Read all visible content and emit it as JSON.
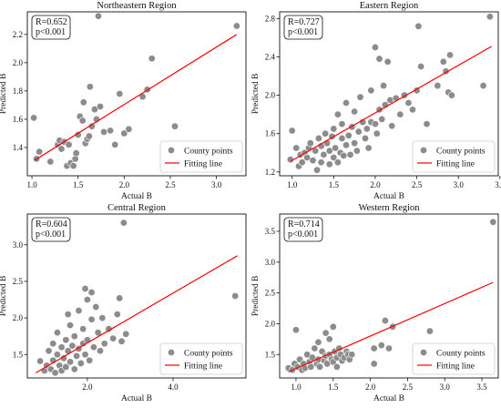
{
  "chart_data": [
    {
      "type": "scatter",
      "title": "Northeastern Region",
      "xlabel": "Actual B",
      "ylabel": "Predicted B",
      "xlim": [
        0.95,
        3.32
      ],
      "ylim": [
        1.2,
        2.36
      ],
      "xticks": [
        1.0,
        1.5,
        2.0,
        2.5,
        3.0
      ],
      "yticks": [
        1.4,
        1.6,
        1.8,
        2.0,
        2.2
      ],
      "stats": [
        "R=0.652",
        "p<0.001"
      ],
      "legend": {
        "position": "bottom-right",
        "points": "County points",
        "line": "Fitting line"
      },
      "colors": {
        "points": "#8c8c8c",
        "line": "#ff0000"
      },
      "fit_line": [
        [
          1.03,
          1.31
        ],
        [
          3.22,
          2.2
        ]
      ],
      "points": [
        [
          1.02,
          1.61
        ],
        [
          1.05,
          1.32
        ],
        [
          1.08,
          1.37
        ],
        [
          1.2,
          1.3
        ],
        [
          1.28,
          1.42
        ],
        [
          1.3,
          1.45
        ],
        [
          1.32,
          1.39
        ],
        [
          1.35,
          1.44
        ],
        [
          1.38,
          1.27
        ],
        [
          1.4,
          1.42
        ],
        [
          1.42,
          1.29
        ],
        [
          1.45,
          1.27
        ],
        [
          1.47,
          1.32
        ],
        [
          1.48,
          1.36
        ],
        [
          1.5,
          1.49
        ],
        [
          1.52,
          1.62
        ],
        [
          1.55,
          1.59
        ],
        [
          1.56,
          1.72
        ],
        [
          1.58,
          1.43
        ],
        [
          1.6,
          1.46
        ],
        [
          1.62,
          1.48
        ],
        [
          1.63,
          1.83
        ],
        [
          1.65,
          1.55
        ],
        [
          1.68,
          1.67
        ],
        [
          1.7,
          1.6
        ],
        [
          1.72,
          2.33
        ],
        [
          1.74,
          1.69
        ],
        [
          1.78,
          1.51
        ],
        [
          1.85,
          1.52
        ],
        [
          1.9,
          1.42
        ],
        [
          1.95,
          1.78
        ],
        [
          2.0,
          1.5
        ],
        [
          2.05,
          1.53
        ],
        [
          2.2,
          1.76
        ],
        [
          2.25,
          1.81
        ],
        [
          2.3,
          2.03
        ],
        [
          2.55,
          1.55
        ],
        [
          3.22,
          2.26
        ]
      ]
    },
    {
      "type": "scatter",
      "title": "Eastern Region",
      "xlabel": "Actual B",
      "ylabel": "Predicted B",
      "xlim": [
        0.85,
        3.48
      ],
      "ylim": [
        1.16,
        2.87
      ],
      "xticks": [
        1.0,
        1.5,
        2.0,
        2.5,
        3.0,
        3.5
      ],
      "yticks": [
        1.2,
        1.6,
        2.0,
        2.4,
        2.8
      ],
      "stats": [
        "R=0.727",
        "p<0.001"
      ],
      "legend": {
        "position": "bottom-right",
        "points": "County points",
        "line": "Fitting line"
      },
      "colors": {
        "points": "#8c8c8c",
        "line": "#ff0000"
      },
      "fit_line": [
        [
          0.98,
          1.31
        ],
        [
          3.4,
          2.51
        ]
      ],
      "points": [
        [
          0.98,
          1.33
        ],
        [
          1.0,
          1.63
        ],
        [
          1.05,
          1.45
        ],
        [
          1.08,
          1.26
        ],
        [
          1.1,
          1.38
        ],
        [
          1.12,
          1.3
        ],
        [
          1.15,
          1.4
        ],
        [
          1.18,
          1.35
        ],
        [
          1.2,
          1.45
        ],
        [
          1.22,
          1.5
        ],
        [
          1.25,
          1.32
        ],
        [
          1.28,
          1.42
        ],
        [
          1.3,
          1.22
        ],
        [
          1.32,
          1.55
        ],
        [
          1.35,
          1.3
        ],
        [
          1.35,
          1.47
        ],
        [
          1.38,
          1.38
        ],
        [
          1.4,
          1.6
        ],
        [
          1.42,
          1.5
        ],
        [
          1.45,
          1.28
        ],
        [
          1.45,
          1.42
        ],
        [
          1.48,
          1.57
        ],
        [
          1.5,
          1.35
        ],
        [
          1.5,
          1.65
        ],
        [
          1.52,
          1.45
        ],
        [
          1.55,
          1.3
        ],
        [
          1.55,
          1.8
        ],
        [
          1.58,
          1.4
        ],
        [
          1.6,
          1.55
        ],
        [
          1.6,
          1.7
        ],
        [
          1.62,
          1.37
        ],
        [
          1.65,
          1.48
        ],
        [
          1.65,
          1.92
        ],
        [
          1.68,
          1.58
        ],
        [
          1.7,
          1.38
        ],
        [
          1.72,
          1.67
        ],
        [
          1.75,
          1.5
        ],
        [
          1.75,
          1.83
        ],
        [
          1.78,
          1.42
        ],
        [
          1.8,
          1.62
        ],
        [
          1.82,
          1.98
        ],
        [
          1.85,
          1.72
        ],
        [
          1.88,
          1.55
        ],
        [
          1.9,
          1.65
        ],
        [
          1.92,
          1.45
        ],
        [
          1.95,
          1.72
        ],
        [
          1.95,
          2.05
        ],
        [
          2.0,
          2.5
        ],
        [
          2.0,
          1.7
        ],
        [
          2.02,
          1.6
        ],
        [
          2.05,
          2.38
        ],
        [
          2.05,
          1.85
        ],
        [
          2.08,
          1.75
        ],
        [
          2.1,
          2.1
        ],
        [
          2.12,
          1.9
        ],
        [
          2.15,
          2.35
        ],
        [
          2.18,
          1.95
        ],
        [
          2.2,
          1.68
        ],
        [
          2.25,
          1.97
        ],
        [
          2.3,
          1.8
        ],
        [
          2.35,
          2.0
        ],
        [
          2.4,
          1.92
        ],
        [
          2.45,
          1.85
        ],
        [
          2.5,
          2.05
        ],
        [
          2.52,
          2.72
        ],
        [
          2.55,
          2.3
        ],
        [
          2.62,
          1.7
        ],
        [
          2.75,
          2.1
        ],
        [
          2.82,
          2.35
        ],
        [
          2.85,
          2.25
        ],
        [
          2.88,
          2.03
        ],
        [
          2.9,
          2.42
        ],
        [
          2.92,
          2.0
        ],
        [
          3.3,
          2.1
        ],
        [
          3.38,
          2.82
        ]
      ]
    },
    {
      "type": "scatter",
      "title": "Central Region",
      "xlabel": "Actual B",
      "ylabel": "Predicted B",
      "xlim": [
        0.6,
        5.7
      ],
      "ylim": [
        1.18,
        3.42
      ],
      "xticks": [
        2.0,
        4.0
      ],
      "yticks": [
        1.5,
        2.0,
        2.5,
        3.0
      ],
      "stats": [
        "R=0.604",
        "p<0.001"
      ],
      "legend": {
        "position": "bottom-right",
        "points": "County points",
        "line": "Fitting line"
      },
      "colors": {
        "points": "#8c8c8c",
        "line": "#ff0000"
      },
      "fit_line": [
        [
          0.8,
          1.25
        ],
        [
          5.5,
          2.85
        ]
      ],
      "points": [
        [
          0.9,
          1.41
        ],
        [
          1.0,
          1.28
        ],
        [
          1.05,
          1.35
        ],
        [
          1.1,
          1.55
        ],
        [
          1.15,
          1.3
        ],
        [
          1.2,
          1.42
        ],
        [
          1.2,
          1.65
        ],
        [
          1.25,
          1.25
        ],
        [
          1.3,
          1.5
        ],
        [
          1.3,
          1.8
        ],
        [
          1.35,
          1.35
        ],
        [
          1.4,
          1.6
        ],
        [
          1.4,
          1.28
        ],
        [
          1.45,
          1.45
        ],
        [
          1.5,
          1.7
        ],
        [
          1.5,
          1.33
        ],
        [
          1.55,
          1.55
        ],
        [
          1.55,
          2.05
        ],
        [
          1.6,
          1.4
        ],
        [
          1.6,
          1.9
        ],
        [
          1.65,
          1.62
        ],
        [
          1.7,
          1.3
        ],
        [
          1.7,
          1.75
        ],
        [
          1.75,
          1.48
        ],
        [
          1.8,
          2.1
        ],
        [
          1.8,
          1.58
        ],
        [
          1.85,
          1.38
        ],
        [
          1.9,
          1.85
        ],
        [
          1.9,
          1.65
        ],
        [
          1.95,
          2.4
        ],
        [
          1.95,
          1.5
        ],
        [
          2.0,
          2.25
        ],
        [
          2.0,
          1.7
        ],
        [
          2.05,
          1.42
        ],
        [
          2.1,
          1.98
        ],
        [
          2.1,
          2.35
        ],
        [
          2.15,
          1.6
        ],
        [
          2.2,
          2.15
        ],
        [
          2.25,
          1.8
        ],
        [
          2.3,
          1.55
        ],
        [
          2.35,
          2.0
        ],
        [
          2.4,
          1.65
        ],
        [
          2.5,
          1.85
        ],
        [
          2.6,
          1.72
        ],
        [
          2.7,
          2.05
        ],
        [
          2.75,
          2.27
        ],
        [
          2.8,
          1.68
        ],
        [
          2.85,
          3.3
        ],
        [
          2.9,
          1.78
        ],
        [
          5.45,
          2.3
        ]
      ]
    },
    {
      "type": "scatter",
      "title": "Western Region",
      "xlabel": "Actual B",
      "ylabel": "Predicted B",
      "xlim": [
        0.78,
        3.72
      ],
      "ylim": [
        1.12,
        3.78
      ],
      "xticks": [
        1.0,
        1.5,
        2.0,
        2.5,
        3.0,
        3.5
      ],
      "yticks": [
        1.5,
        2.0,
        2.5,
        3.0,
        3.5
      ],
      "stats": [
        "R=0.714",
        "p<0.001"
      ],
      "legend": {
        "position": "bottom-right",
        "points": "County points",
        "line": "Fitting line"
      },
      "colors": {
        "points": "#8c8c8c",
        "line": "#ff0000"
      },
      "fit_line": [
        [
          0.9,
          1.22
        ],
        [
          3.65,
          2.67
        ]
      ],
      "points": [
        [
          0.9,
          1.28
        ],
        [
          0.95,
          1.25
        ],
        [
          0.98,
          1.35
        ],
        [
          1.0,
          1.9
        ],
        [
          1.02,
          1.3
        ],
        [
          1.05,
          1.42
        ],
        [
          1.08,
          1.25
        ],
        [
          1.1,
          1.35
        ],
        [
          1.12,
          1.28
        ],
        [
          1.15,
          1.5
        ],
        [
          1.18,
          1.38
        ],
        [
          1.2,
          1.3
        ],
        [
          1.22,
          1.45
        ],
        [
          1.25,
          1.6
        ],
        [
          1.28,
          1.35
        ],
        [
          1.3,
          1.7
        ],
        [
          1.3,
          1.42
        ],
        [
          1.32,
          1.3
        ],
        [
          1.35,
          1.55
        ],
        [
          1.38,
          1.4
        ],
        [
          1.4,
          1.85
        ],
        [
          1.4,
          1.48
        ],
        [
          1.42,
          1.35
        ],
        [
          1.45,
          1.75
        ],
        [
          1.45,
          1.5
        ],
        [
          1.48,
          1.42
        ],
        [
          1.5,
          1.95
        ],
        [
          1.5,
          1.38
        ],
        [
          1.52,
          1.55
        ],
        [
          1.55,
          1.45
        ],
        [
          1.55,
          1.3
        ],
        [
          1.58,
          1.6
        ],
        [
          1.6,
          1.5
        ],
        [
          1.62,
          1.4
        ],
        [
          1.65,
          1.45
        ],
        [
          1.68,
          1.55
        ],
        [
          1.7,
          1.5
        ],
        [
          1.72,
          1.42
        ],
        [
          1.75,
          1.5
        ],
        [
          2.05,
          1.6
        ],
        [
          2.05,
          1.35
        ],
        [
          2.15,
          1.65
        ],
        [
          2.2,
          2.05
        ],
        [
          2.25,
          1.6
        ],
        [
          2.3,
          1.95
        ],
        [
          2.8,
          1.88
        ],
        [
          3.65,
          3.65
        ]
      ]
    }
  ]
}
